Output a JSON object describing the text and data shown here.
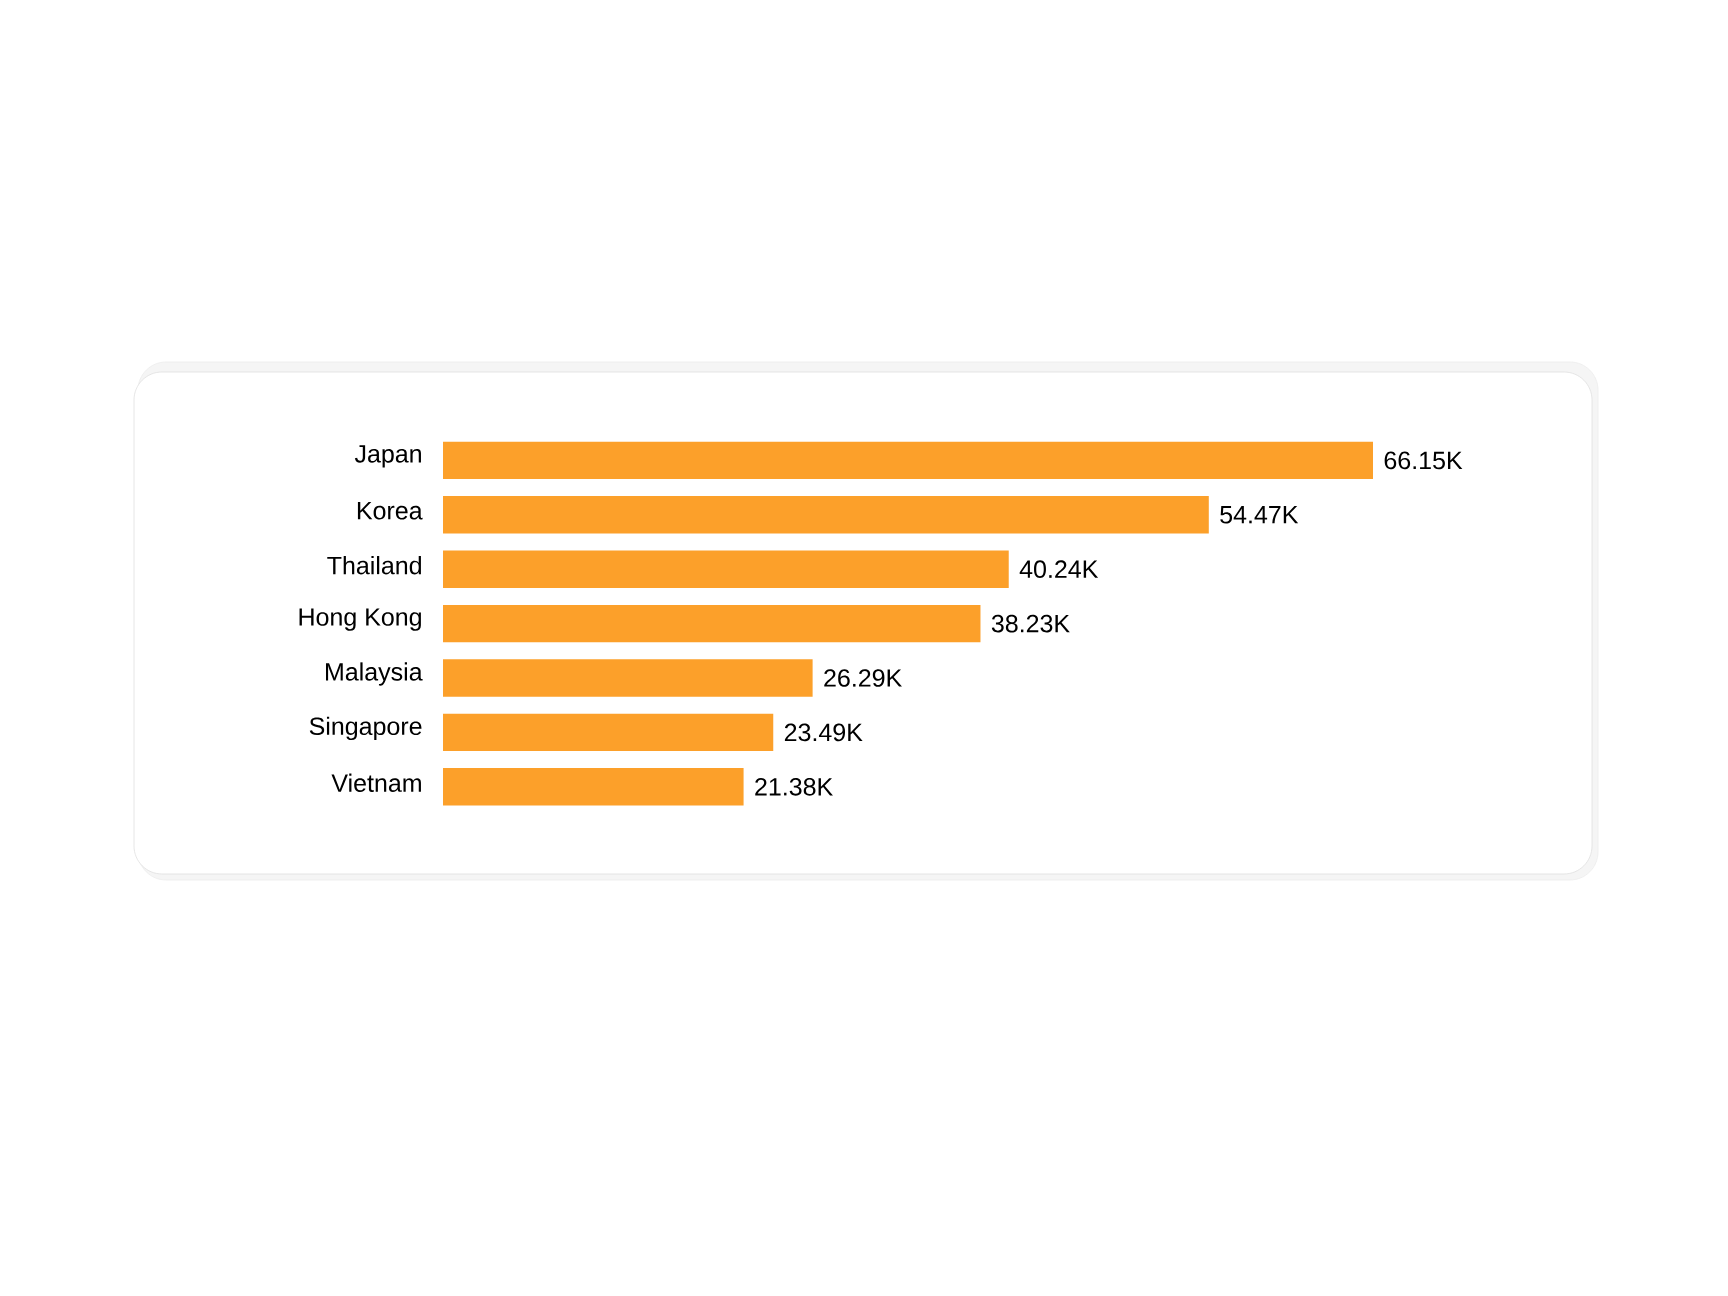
{
  "chart_data": {
    "type": "bar",
    "orientation": "horizontal",
    "categories": [
      "Japan",
      "Korea",
      "Thailand",
      "Hong Kong",
      "Malaysia",
      "Singapore",
      "Vietnam"
    ],
    "values": [
      66.15,
      54.47,
      40.24,
      38.23,
      26.29,
      23.49,
      21.38
    ],
    "value_labels": [
      "66.15K",
      "54.47K",
      "40.24K",
      "38.23K",
      "26.29K",
      "23.49K",
      "21.38K"
    ],
    "color": "#fca02a"
  }
}
